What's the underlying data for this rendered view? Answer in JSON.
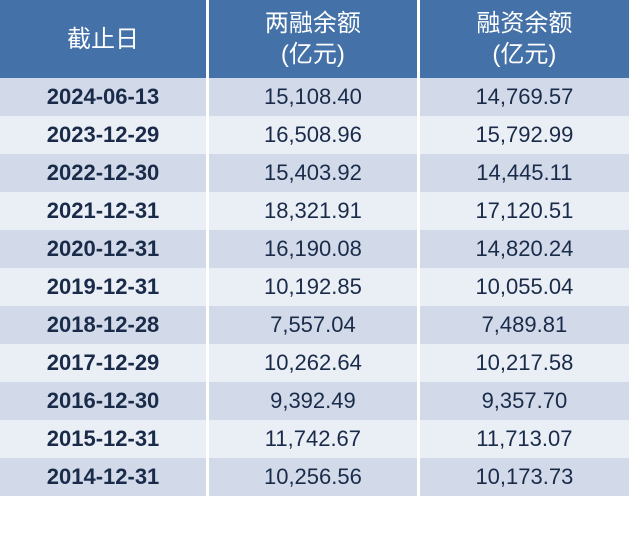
{
  "table": {
    "header_bg": "#4472a8",
    "row_even_bg": "#d2dae9",
    "row_odd_bg": "#eaeef5",
    "text_color": "#1a2b4a",
    "header_fontsize": 24,
    "cell_fontsize": 22,
    "columns": [
      {
        "line1": "截止日",
        "line2": ""
      },
      {
        "line1": "两融余额",
        "line2": "(亿元)"
      },
      {
        "line1": "融资余额",
        "line2": "(亿元)"
      }
    ],
    "rows": [
      {
        "date": "2024-06-13",
        "col1": "15,108.40",
        "col2": "14,769.57"
      },
      {
        "date": "2023-12-29",
        "col1": "16,508.96",
        "col2": "15,792.99"
      },
      {
        "date": "2022-12-30",
        "col1": "15,403.92",
        "col2": "14,445.11"
      },
      {
        "date": "2021-12-31",
        "col1": "18,321.91",
        "col2": "17,120.51"
      },
      {
        "date": "2020-12-31",
        "col1": "16,190.08",
        "col2": "14,820.24"
      },
      {
        "date": "2019-12-31",
        "col1": "10,192.85",
        "col2": "10,055.04"
      },
      {
        "date": "2018-12-28",
        "col1": "7,557.04",
        "col2": "7,489.81"
      },
      {
        "date": "2017-12-29",
        "col1": "10,262.64",
        "col2": "10,217.58"
      },
      {
        "date": "2016-12-30",
        "col1": "9,392.49",
        "col2": "9,357.70"
      },
      {
        "date": "2015-12-31",
        "col1": "11,742.67",
        "col2": "11,713.07"
      },
      {
        "date": "2014-12-31",
        "col1": "10,256.56",
        "col2": "10,173.73"
      }
    ]
  }
}
